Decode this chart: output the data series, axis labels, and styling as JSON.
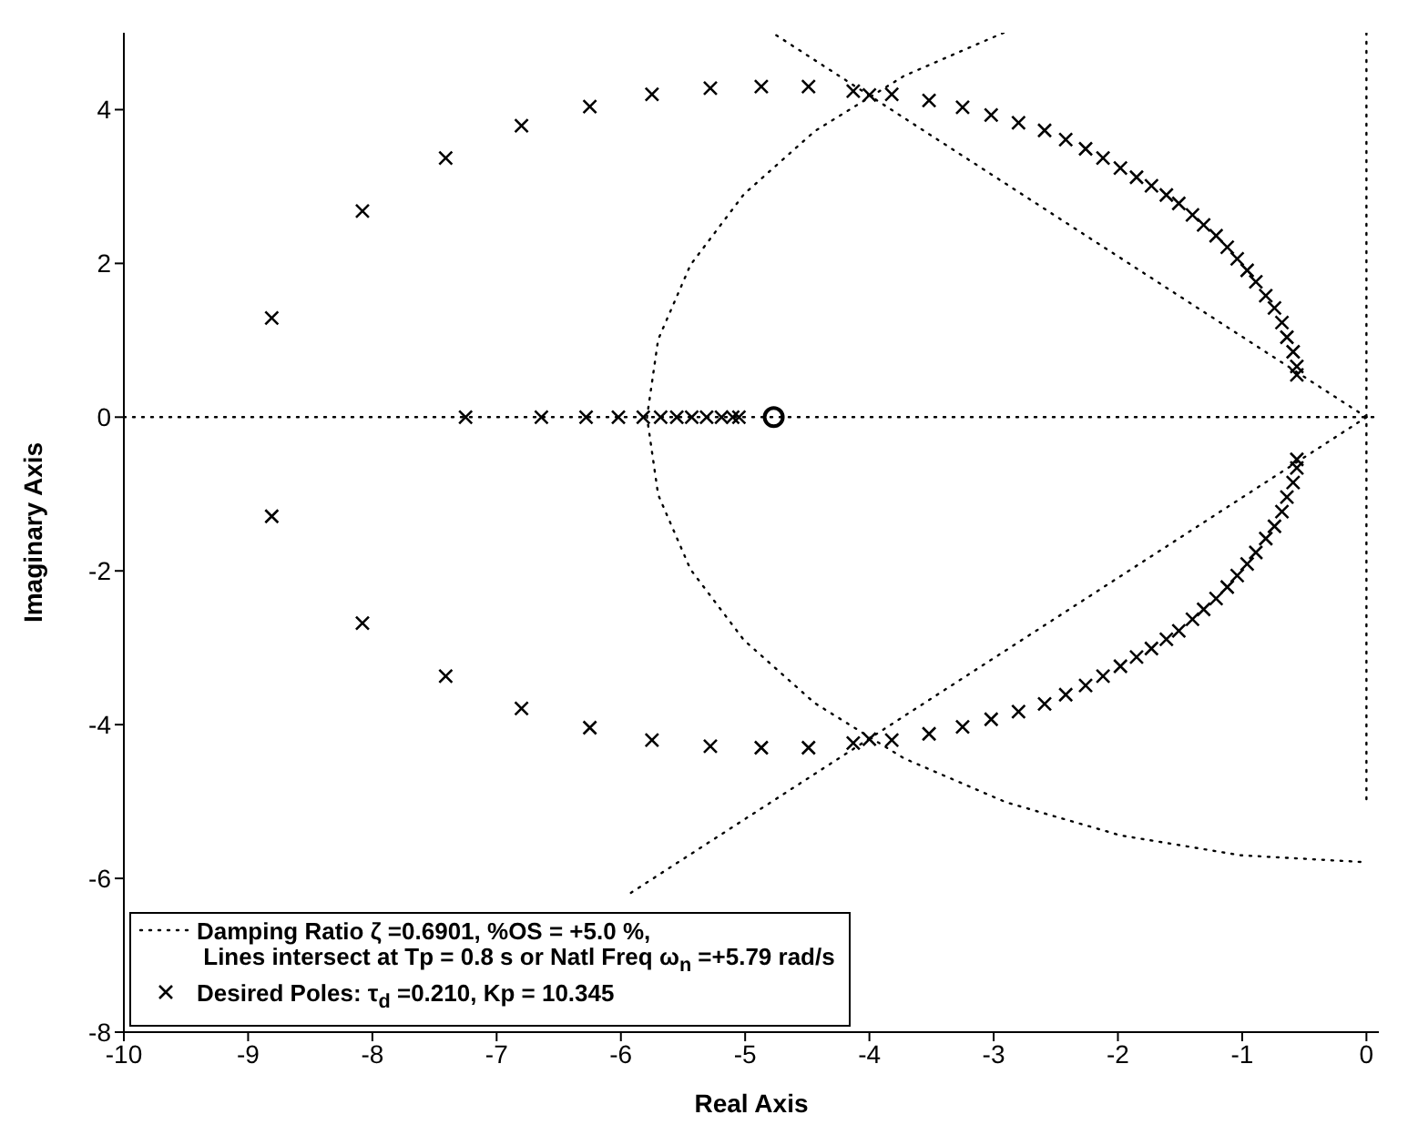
{
  "chart_data": {
    "type": "scatter",
    "xlabel": "Real Axis",
    "ylabel": "Imaginary Axis",
    "xlim": [
      -10,
      0.1
    ],
    "xticks": [
      -10,
      -9,
      -8,
      -7,
      -6,
      -5,
      -4,
      -3,
      -2,
      -1,
      0
    ],
    "ylim": [
      -8,
      5
    ],
    "yticks": [
      -8,
      -6,
      -4,
      -2,
      0,
      2,
      4
    ],
    "legend": "bottom left",
    "ref_lines": [
      {
        "axis": "y",
        "value": 0,
        "color": "#000000",
        "line_style": "dotted"
      }
    ],
    "series": [
      {
        "type": "line",
        "name": "Damping Ratio ζ =0.6901, %OS = +5.0 %,\n Lines intersect at Tp = 0.8 s or Natl Freq ω$_{n}$ =+5.79 rad/s",
        "color": "#000000",
        "line_style": "dotted",
        "marker": "none",
        "x": [
          -2.92,
          -3.72,
          -4.44,
          -5.01,
          -5.44,
          -5.7,
          -5.79,
          -5.7,
          -5.44,
          -5.01,
          -4.44,
          -3.72,
          -2.9,
          -1.98,
          -1.01,
          0
        ],
        "values": [
          5.0,
          4.44,
          3.72,
          2.9,
          1.98,
          1.01,
          0,
          -1.01,
          -1.98,
          -2.9,
          -3.72,
          -4.44,
          -5.01,
          -5.44,
          -5.7,
          -5.79
        ]
      },
      {
        "type": "line",
        "color": "#000000",
        "line_style": "dotted",
        "marker": "none",
        "x": [
          0,
          -4.78
        ],
        "values": [
          0,
          5
        ]
      },
      {
        "type": "line",
        "color": "#000000",
        "line_style": "dotted",
        "marker": "none",
        "x": [
          0,
          -5.96
        ],
        "values": [
          0,
          -6.23
        ]
      },
      {
        "color": "#000000",
        "marker": "cross",
        "x": [
          -8.81,
          -8.08,
          -7.41,
          -6.8,
          -6.25,
          -5.75,
          -5.28,
          -4.87,
          -4.49,
          -4.13,
          -3.82,
          -3.52,
          -3.25,
          -3.02,
          -2.8,
          -2.59,
          -2.42,
          -2.26,
          -2.12,
          -1.98,
          -1.85,
          -1.73,
          -1.61,
          -1.51,
          -1.4,
          -1.31,
          -1.21,
          -1.12,
          -1.04,
          -0.96,
          -0.89,
          -0.81,
          -0.74,
          -0.68,
          -0.64,
          -0.59,
          -0.56,
          -0.56,
          -7.25,
          -6.64,
          -6.28,
          -6.02,
          -5.82,
          -5.68,
          -5.55,
          -5.43,
          -5.31,
          -5.19,
          -5.1,
          -5.05,
          -8.81,
          -8.08,
          -7.41,
          -6.8,
          -6.25,
          -5.75,
          -5.28,
          -4.87,
          -4.49,
          -4.13,
          -3.82,
          -3.52,
          -3.25,
          -3.02,
          -2.8,
          -2.59,
          -2.42,
          -2.26,
          -2.12,
          -1.98,
          -1.85,
          -1.73,
          -1.61,
          -1.51,
          -1.4,
          -1.31,
          -1.21,
          -1.12,
          -1.04,
          -0.96,
          -0.89,
          -0.81,
          -0.74,
          -0.68,
          -0.64,
          -0.59,
          -0.56,
          -0.56
        ],
        "values": [
          1.29,
          2.68,
          3.37,
          3.79,
          4.04,
          4.2,
          4.28,
          4.3,
          4.3,
          4.24,
          4.2,
          4.12,
          4.03,
          3.93,
          3.83,
          3.73,
          3.61,
          3.49,
          3.37,
          3.24,
          3.12,
          3.01,
          2.89,
          2.78,
          2.63,
          2.5,
          2.36,
          2.21,
          2.06,
          1.91,
          1.76,
          1.58,
          1.42,
          1.23,
          1.04,
          0.85,
          0.66,
          0.55,
          0,
          0,
          0,
          0,
          0,
          0,
          0,
          0,
          0,
          0,
          0,
          0,
          -1.29,
          -2.68,
          -3.37,
          -3.79,
          -4.04,
          -4.2,
          -4.28,
          -4.3,
          -4.3,
          -4.24,
          -4.2,
          -4.12,
          -4.03,
          -3.93,
          -3.83,
          -3.73,
          -3.61,
          -3.49,
          -3.37,
          -3.24,
          -3.12,
          -3.01,
          -2.89,
          -2.78,
          -2.63,
          -2.5,
          -2.36,
          -2.21,
          -2.06,
          -1.91,
          -1.76,
          -1.58,
          -1.42,
          -1.23,
          -1.04,
          -0.85,
          -0.66,
          -0.55
        ]
      },
      {
        "name": "Desired Poles: τ$_{d}$ =0.210, Kp = 10.345",
        "color": "#000000",
        "marker": "cross",
        "x": [
          -4.0,
          -4.0
        ],
        "values": [
          4.19,
          -4.19
        ]
      },
      {
        "color": "#000000",
        "marker": "circle",
        "x": [
          -4.77
        ],
        "values": [
          0
        ]
      },
      {
        "type": "line",
        "color": "#000000",
        "line_style": "dotted",
        "marker": "none",
        "x": [
          0,
          0,
          0
        ],
        "values": [
          5,
          0,
          -5
        ]
      }
    ]
  }
}
